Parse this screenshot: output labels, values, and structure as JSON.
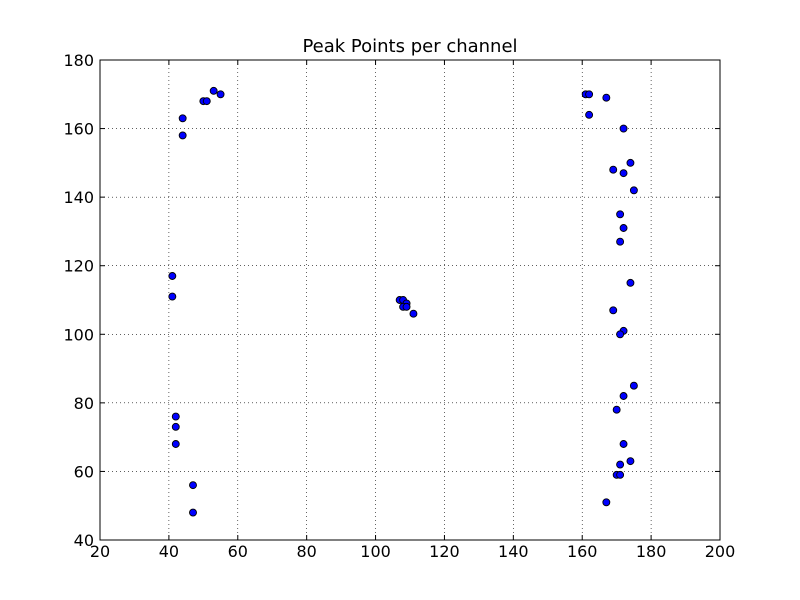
{
  "chart_data": {
    "type": "scatter",
    "title": "Peak Points per channel",
    "xlabel": "",
    "ylabel": "",
    "xlim": [
      20,
      200
    ],
    "ylim": [
      40,
      180
    ],
    "x_ticks": [
      20,
      40,
      60,
      80,
      100,
      120,
      140,
      160,
      180,
      200
    ],
    "y_ticks": [
      40,
      60,
      80,
      100,
      120,
      140,
      160,
      180
    ],
    "grid": true,
    "legend": "none",
    "series": [
      {
        "color": "#0000ff",
        "points": [
          [
            53,
            171
          ],
          [
            55,
            170
          ],
          [
            50,
            168
          ],
          [
            51,
            168
          ],
          [
            44,
            163
          ],
          [
            44,
            158
          ],
          [
            41,
            117
          ],
          [
            41,
            111
          ],
          [
            42,
            76
          ],
          [
            42,
            73
          ],
          [
            42,
            68
          ],
          [
            47,
            56
          ],
          [
            47,
            48
          ],
          [
            107,
            110
          ],
          [
            108,
            110
          ],
          [
            109,
            109
          ],
          [
            108,
            108
          ],
          [
            109,
            108
          ],
          [
            111,
            106
          ],
          [
            161,
            170
          ],
          [
            162,
            170
          ],
          [
            167,
            169
          ],
          [
            162,
            164
          ],
          [
            172,
            160
          ],
          [
            174,
            150
          ],
          [
            169,
            148
          ],
          [
            172,
            147
          ],
          [
            175,
            142
          ],
          [
            171,
            135
          ],
          [
            172,
            131
          ],
          [
            171,
            127
          ],
          [
            174,
            115
          ],
          [
            169,
            107
          ],
          [
            172,
            101
          ],
          [
            171,
            100
          ],
          [
            175,
            85
          ],
          [
            172,
            82
          ],
          [
            170,
            78
          ],
          [
            172,
            68
          ],
          [
            174,
            63
          ],
          [
            171,
            62
          ],
          [
            170,
            59
          ],
          [
            171,
            59
          ],
          [
            167,
            51
          ]
        ]
      }
    ]
  }
}
